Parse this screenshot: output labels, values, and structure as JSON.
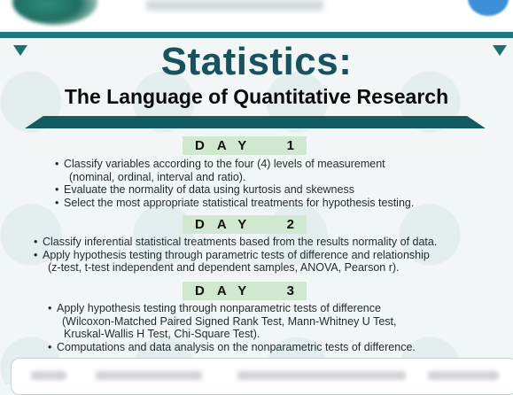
{
  "title": "Statistics:",
  "subtitle": "The Language of Quantitative Research",
  "days": [
    {
      "word": "DAY",
      "num": "1",
      "items": [
        {
          "line1": "Classify variables according to the four (4) levels of measurement",
          "line2": "(nominal, ordinal, interval and ratio)."
        },
        {
          "line1": "Evaluate the normality of data using kurtosis and skewness",
          "line2": ""
        },
        {
          "line1": "Select the most appropriate statistical treatments for hypothesis testing.",
          "line2": ""
        }
      ]
    },
    {
      "word": "DAY",
      "num": "2",
      "items": [
        {
          "line1": "Classify inferential statistical treatments based from the results normality of data.",
          "line2": ""
        },
        {
          "line1": "Apply hypothesis testing through parametric tests of difference and relationship",
          "line2": "(z-test, t-test independent and dependent samples, ANOVA, Pearson r)."
        }
      ]
    },
    {
      "word": "DAY",
      "num": "3",
      "items": [
        {
          "line1": "Apply hypothesis testing through nonparametric tests of difference",
          "line2": "(Wilcoxon-Matched Paired Signed Rank Test, Mann-Whitney U Test,",
          "line3": "Kruskal-Wallis H Test, Chi-Square Test)."
        },
        {
          "line1": "Computations and data analysis on the nonparametric tests of difference.",
          "line2": ""
        }
      ]
    }
  ],
  "colors": {
    "title": "#17525d",
    "accent": "#23787c",
    "day_label_bg": "#cfe8cf"
  }
}
